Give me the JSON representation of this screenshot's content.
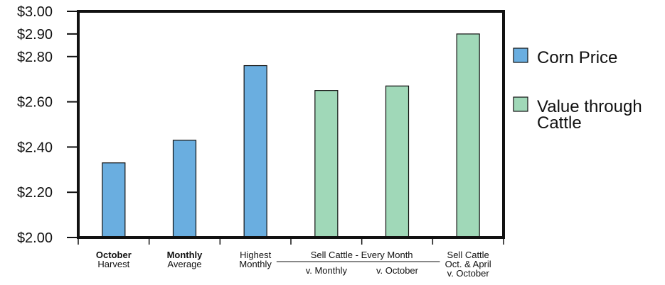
{
  "chart_data": {
    "type": "bar",
    "ylim": [
      2.0,
      3.0
    ],
    "yticks": [
      "$2.00",
      "$2.20",
      "$2.40",
      "$2.60",
      "$2.80",
      "$2.90",
      "$3.00"
    ],
    "ytick_values": [
      2.0,
      2.2,
      2.4,
      2.6,
      2.8,
      2.9,
      3.0
    ],
    "legend_position": "right",
    "categories": [
      {
        "lines": [
          {
            "text": "October",
            "bold": true
          },
          {
            "text": "Harvest",
            "bold": false
          }
        ]
      },
      {
        "lines": [
          {
            "text": "Monthly",
            "bold": true
          },
          {
            "text": "Average",
            "bold": false
          }
        ]
      },
      {
        "lines": [
          {
            "text": "Highest",
            "bold": false
          },
          {
            "text": "Monthly",
            "bold": false
          }
        ]
      },
      {
        "lines": [
          {
            "text": "v. Monthly",
            "bold": false
          }
        ]
      },
      {
        "lines": [
          {
            "text": "v. October",
            "bold": false
          }
        ]
      },
      {
        "lines": [
          {
            "text": "Sell Cattle",
            "bold": false
          },
          {
            "text": "Oct. & April",
            "bold": false
          },
          {
            "text": "v. October",
            "bold": false
          }
        ]
      }
    ],
    "group_label": "Sell Cattle - Every Month",
    "values": [
      2.33,
      2.43,
      2.76,
      2.65,
      2.67,
      2.9
    ],
    "series_index": [
      0,
      0,
      0,
      1,
      1,
      1
    ],
    "series": [
      {
        "name": "Corn Price",
        "color": "#6aaee0"
      },
      {
        "name": "Value through Cattle",
        "name_lines": [
          "Value through",
          "Cattle"
        ],
        "color": "#a0d8b8"
      }
    ]
  }
}
